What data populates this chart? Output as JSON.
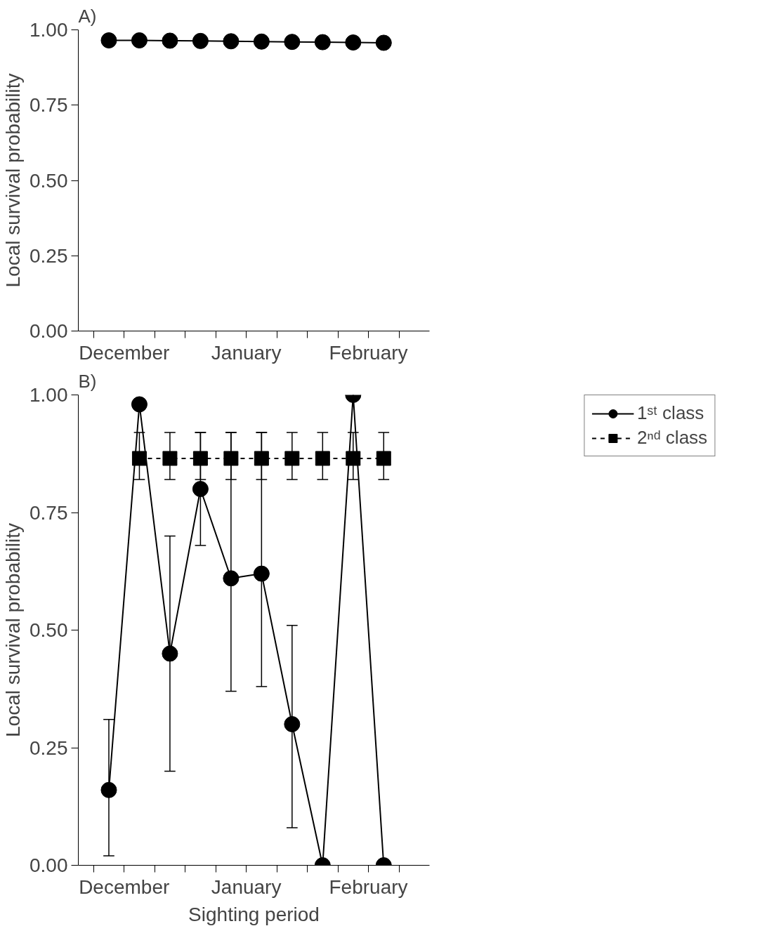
{
  "chart_data": [
    {
      "type": "line",
      "title": "A)",
      "ylabel": "Local survival probability",
      "ylim": [
        0,
        1.0
      ],
      "yticks": [
        {
          "value": 0,
          "label": "0.00"
        },
        {
          "value": 0.25,
          "label": "0.25"
        },
        {
          "value": 0.5,
          "label": "0.50"
        },
        {
          "value": 0.75,
          "label": "0.75"
        },
        {
          "value": 1.0,
          "label": "1.00"
        }
      ],
      "categories": [
        null,
        null,
        null,
        null,
        null,
        null,
        null,
        null,
        null,
        null
      ],
      "annotations": [
        "December",
        "January",
        "February"
      ],
      "marker": "circle",
      "line_style": "solid",
      "grid": false,
      "legend": false,
      "series": [
        {
          "color": "#000000",
          "values": [
            0.965,
            0.965,
            0.964,
            0.963,
            0.962,
            0.961,
            0.96,
            0.959,
            0.958,
            0.957
          ]
        }
      ]
    },
    {
      "type": "line",
      "title": "B)",
      "xlabel": "Sighting period",
      "ylabel": "Local survival probability",
      "ylim": [
        0,
        1.0
      ],
      "yticks": [
        {
          "value": 0,
          "label": "0.00"
        },
        {
          "value": 0.25,
          "label": "0.25"
        },
        {
          "value": 0.5,
          "label": "0.50"
        },
        {
          "value": 0.75,
          "label": "0.75"
        },
        {
          "value": 1.0,
          "label": "1.00"
        }
      ],
      "categories": [
        null,
        null,
        null,
        null,
        null,
        null,
        null,
        null,
        null,
        null
      ],
      "annotations": [
        "December",
        "January",
        "February"
      ],
      "grid": false,
      "legend": "top right",
      "series": [
        {
          "name": "1ˢᵗ class",
          "color": "#000000",
          "marker": "circle",
          "line_style": "solid",
          "values": [
            0.16,
            0.98,
            0.45,
            0.8,
            0.61,
            0.62,
            0.3,
            0.0,
            1.0,
            0.0
          ],
          "errors": [
            [
              0.02,
              0.31
            ],
            null,
            [
              0.2,
              0.7
            ],
            [
              0.68,
              0.92
            ],
            [
              0.37,
              0.92
            ],
            [
              0.38,
              0.92
            ],
            [
              0.08,
              0.51
            ],
            null,
            null,
            null
          ]
        },
        {
          "name": "2ⁿᵈ class",
          "color": "#000000",
          "marker": "square",
          "line_style": "dashed",
          "values": [
            null,
            0.865,
            0.865,
            0.865,
            0.865,
            0.865,
            0.865,
            0.865,
            0.865,
            0.865
          ],
          "errors": [
            null,
            [
              0.82,
              0.92
            ],
            [
              0.82,
              0.92
            ],
            [
              0.82,
              0.92
            ],
            [
              0.82,
              0.92
            ],
            [
              0.82,
              0.92
            ],
            [
              0.82,
              0.92
            ],
            [
              0.82,
              0.92
            ],
            [
              0.82,
              0.92
            ],
            [
              0.82,
              0.92
            ]
          ]
        }
      ]
    }
  ]
}
